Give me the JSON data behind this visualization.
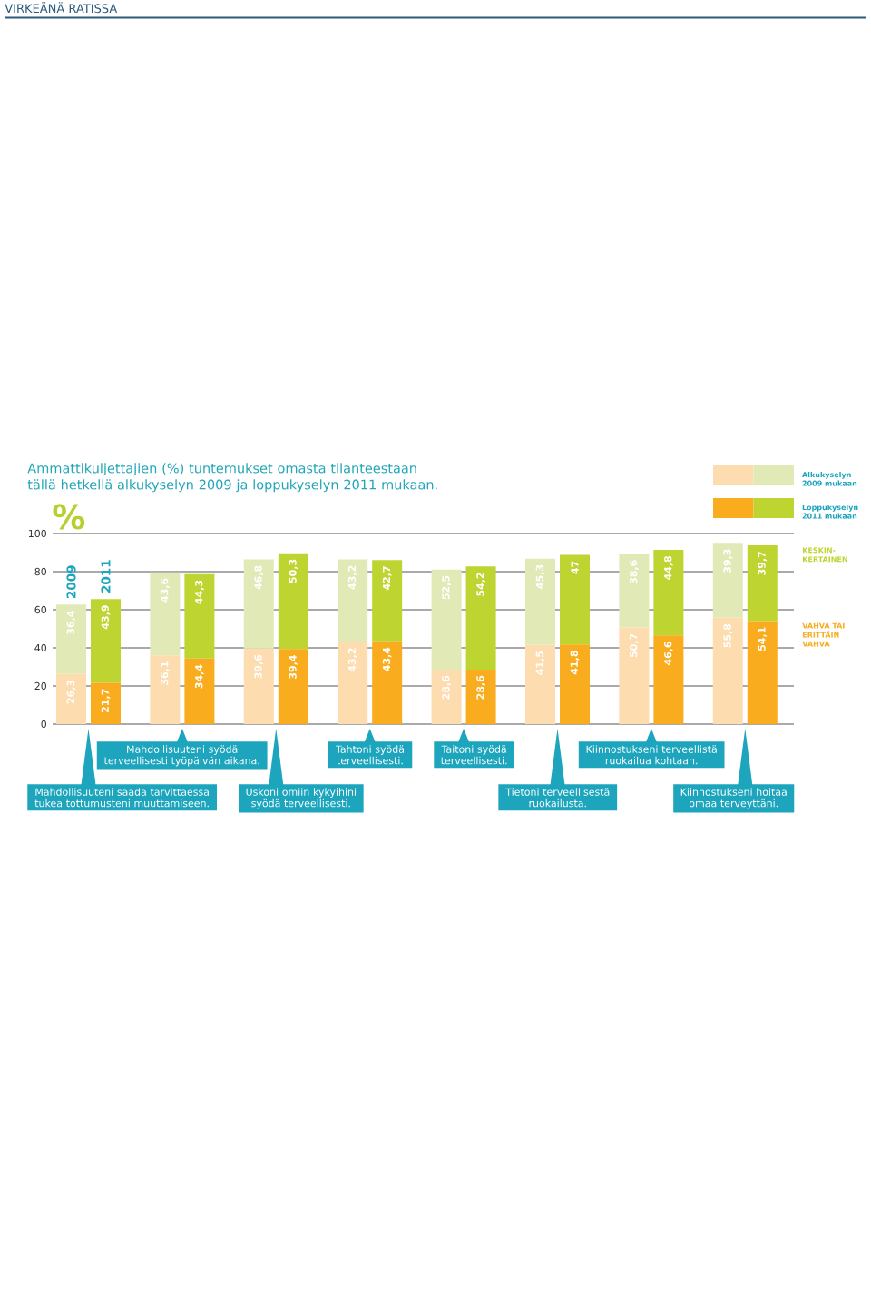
{
  "chart_data": {
    "type": "bar",
    "title": "Ammattikuljettajien (%) tuntemukset omasta tilanteestaan tällä hetkellä alkukyselyn 2009 ja loppukyselyn 2011 mukaan.",
    "ylabel": "%",
    "categories": [
      "2009",
      "2011",
      null,
      null,
      null,
      null,
      null,
      null,
      null,
      null,
      null,
      null,
      null,
      null,
      null,
      null
    ],
    "stacked": true,
    "series": [
      {
        "name": "VAHVA TAI ERITTÄIN VAHVA",
        "colors": [
          "#fddcb0",
          "#f8ac1e",
          "#fddcb0",
          "#f8ac1e",
          "#fddcb0",
          "#f8ac1e",
          "#fddcb0",
          "#f8ac1e",
          "#fddcb0",
          "#f8ac1e",
          "#fddcb0",
          "#f8ac1e",
          "#fddcb0",
          "#f8ac1e",
          "#fddcb0",
          "#f8ac1e"
        ],
        "values": [
          26.3,
          21.7,
          36.1,
          34.4,
          39.6,
          39.4,
          43.2,
          43.4,
          28.6,
          28.6,
          41.5,
          41.8,
          50.7,
          46.6,
          55.8,
          54.1
        ],
        "value_labels": [
          "26,3",
          "21,7",
          "36,1",
          "34,4",
          "39,6",
          "39,4",
          "43,2",
          "43,4",
          "28,6",
          "28,6",
          "41,5",
          "41,8",
          "50,7",
          "46,6",
          "55,8",
          "54,1"
        ]
      },
      {
        "name": "KESKIN-KERTAINEN",
        "colors": [
          "#e1eab6",
          "#bed431",
          "#e1eab6",
          "#bed431",
          "#e1eab6",
          "#bed431",
          "#e1eab6",
          "#bed431",
          "#e1eab6",
          "#bed431",
          "#e1eab6",
          "#bed431",
          "#e1eab6",
          "#bed431",
          "#e1eab6",
          "#bed431"
        ],
        "values": [
          36.4,
          43.9,
          43.6,
          44.3,
          46.8,
          50.3,
          43.2,
          42.7,
          52.5,
          54.2,
          45.3,
          47,
          38.6,
          44.8,
          39.3,
          39.7
        ],
        "value_labels": [
          "36,4",
          "43,9",
          "43,6",
          "44,3",
          "46,8",
          "50,3",
          "43,2",
          "42,7",
          "52,5",
          "54,2",
          "45,3",
          "47",
          "38,6",
          "44,8",
          "39,3",
          "39,7"
        ]
      }
    ],
    "ylim": [
      0,
      100
    ],
    "yticks": [
      0,
      20,
      40,
      60,
      80,
      100
    ],
    "grid": "y",
    "legend": "top right",
    "annotations": [
      "VIRKEÄNÄ RATISSA",
      "Alkukyselyn 2009 mukaan",
      "Loppukyselyn 2011 mukaan",
      "Mahdollisuuteni saada tarvittaessa tukea tottumusteni muuttamiseen.",
      "Mahdollisuuteni syödä terveellisesti työpäivän aikana.",
      "Uskoni omiin kykyihini syödä terveellisesti.",
      "Tahtoni syödä terveellisesti.",
      "Taitoni syödä terveellisesti.",
      "Tietoni terveellisestä ruokailusta.",
      "Kiinnostukseni terveellistä ruokailua kohtaan.",
      "Kiinnostukseni hoitaa omaa terveyttäni."
    ]
  }
}
